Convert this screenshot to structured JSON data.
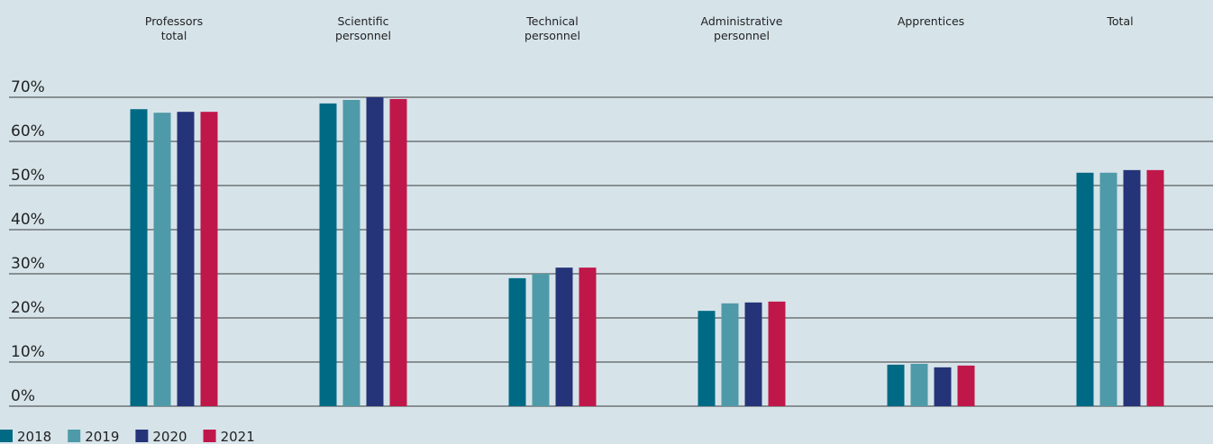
{
  "chart_data": {
    "type": "bar",
    "categories": [
      "Professors total",
      "Scientific personnel",
      "Technical personnel",
      "Administrative personnel",
      "Apprentices",
      "Total"
    ],
    "series": [
      {
        "name": "2018",
        "color": "#006a84",
        "values": [
          67.3,
          68.6,
          29.0,
          21.6,
          9.4,
          52.9
        ]
      },
      {
        "name": "2019",
        "color": "#4f9aa8",
        "values": [
          66.5,
          69.4,
          30.0,
          23.3,
          9.6,
          52.9
        ]
      },
      {
        "name": "2020",
        "color": "#253478",
        "values": [
          66.7,
          70.0,
          31.4,
          23.5,
          8.8,
          53.5
        ]
      },
      {
        "name": "2021",
        "color": "#c0174a",
        "values": [
          66.7,
          69.6,
          31.4,
          23.7,
          9.2,
          53.5
        ]
      }
    ],
    "ylim": [
      0,
      70
    ],
    "yticks": [
      {
        "value": 0,
        "label": "0%"
      },
      {
        "value": 10,
        "label": "10%"
      },
      {
        "value": 20,
        "label": "20%"
      },
      {
        "value": 30,
        "label": "30%"
      },
      {
        "value": 40,
        "label": "40%"
      },
      {
        "value": 50,
        "label": "50%"
      },
      {
        "value": 60,
        "label": "60%"
      },
      {
        "value": 70,
        "label": "70%"
      }
    ],
    "grid": true,
    "legend": "bottom-left"
  }
}
